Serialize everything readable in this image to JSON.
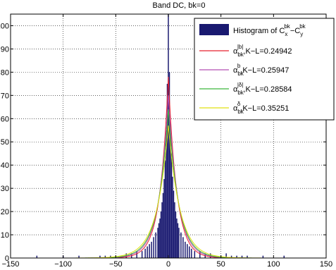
{
  "chart_data": {
    "type": "histogram",
    "title": "Band DC, bk=0",
    "xlim": [
      -150,
      150
    ],
    "ylim": [
      0,
      105
    ],
    "xticks": [
      -150,
      -100,
      -50,
      0,
      50,
      100,
      150
    ],
    "yticks": [
      0,
      10,
      20,
      30,
      40,
      50,
      60,
      70,
      80,
      90,
      100
    ],
    "grid": true,
    "legend_position": "top-right",
    "histogram": {
      "name": "Histogram of C_x^bk − C_y^bk",
      "color": "#191970",
      "bin_width": 1,
      "bins": [
        {
          "x": -125,
          "y": 1
        },
        {
          "x": -100,
          "y": 1
        },
        {
          "x": -85,
          "y": 1
        },
        {
          "x": -65,
          "y": 1
        },
        {
          "x": -60,
          "y": 1
        },
        {
          "x": -55,
          "y": 1
        },
        {
          "x": -50,
          "y": 1
        },
        {
          "x": -45,
          "y": 1
        },
        {
          "x": -40,
          "y": 2
        },
        {
          "x": -35,
          "y": 2
        },
        {
          "x": -30,
          "y": 3
        },
        {
          "x": -25,
          "y": 3
        },
        {
          "x": -22,
          "y": 4
        },
        {
          "x": -20,
          "y": 5
        },
        {
          "x": -18,
          "y": 6
        },
        {
          "x": -16,
          "y": 7
        },
        {
          "x": -14,
          "y": 9
        },
        {
          "x": -12,
          "y": 11
        },
        {
          "x": -10,
          "y": 13
        },
        {
          "x": -9,
          "y": 15
        },
        {
          "x": -8,
          "y": 17
        },
        {
          "x": -7,
          "y": 20
        },
        {
          "x": -6,
          "y": 24
        },
        {
          "x": -5,
          "y": 28
        },
        {
          "x": -4,
          "y": 34
        },
        {
          "x": -3,
          "y": 42
        },
        {
          "x": -2,
          "y": 55
        },
        {
          "x": -1,
          "y": 75
        },
        {
          "x": 0,
          "y": 105
        },
        {
          "x": 1,
          "y": 80
        },
        {
          "x": 2,
          "y": 58
        },
        {
          "x": 3,
          "y": 45
        },
        {
          "x": 4,
          "y": 35
        },
        {
          "x": 5,
          "y": 29
        },
        {
          "x": 6,
          "y": 24
        },
        {
          "x": 7,
          "y": 20
        },
        {
          "x": 8,
          "y": 17
        },
        {
          "x": 9,
          "y": 15
        },
        {
          "x": 10,
          "y": 13
        },
        {
          "x": 12,
          "y": 11
        },
        {
          "x": 14,
          "y": 9
        },
        {
          "x": 16,
          "y": 7
        },
        {
          "x": 18,
          "y": 6
        },
        {
          "x": 20,
          "y": 5
        },
        {
          "x": 22,
          "y": 4
        },
        {
          "x": 25,
          "y": 3
        },
        {
          "x": 30,
          "y": 3
        },
        {
          "x": 35,
          "y": 2
        },
        {
          "x": 40,
          "y": 2
        },
        {
          "x": 45,
          "y": 1
        },
        {
          "x": 50,
          "y": 1
        },
        {
          "x": 55,
          "y": 2
        },
        {
          "x": 60,
          "y": 1
        },
        {
          "x": 65,
          "y": 1
        },
        {
          "x": 70,
          "y": 1
        },
        {
          "x": 75,
          "y": 1
        },
        {
          "x": 90,
          "y": 1
        },
        {
          "x": 110,
          "y": 1
        }
      ]
    },
    "series": [
      {
        "name": "α_bk^|b|, K−L=0.24942",
        "color": "#e8212f",
        "peak": 78,
        "scale": 8.0
      },
      {
        "name": "α_bk^b, K−L=0.25947",
        "color": "#b44fb4",
        "peak": 70,
        "scale": 9.0
      },
      {
        "name": "α_bk^|δ|, K−L=0.28584",
        "color": "#3cb83c",
        "peak": 64,
        "scale": 9.8
      },
      {
        "name": "α_bk^δ, K−L=0.35251",
        "color": "#e0e010",
        "peak": 57,
        "scale": 11.0
      }
    ]
  }
}
